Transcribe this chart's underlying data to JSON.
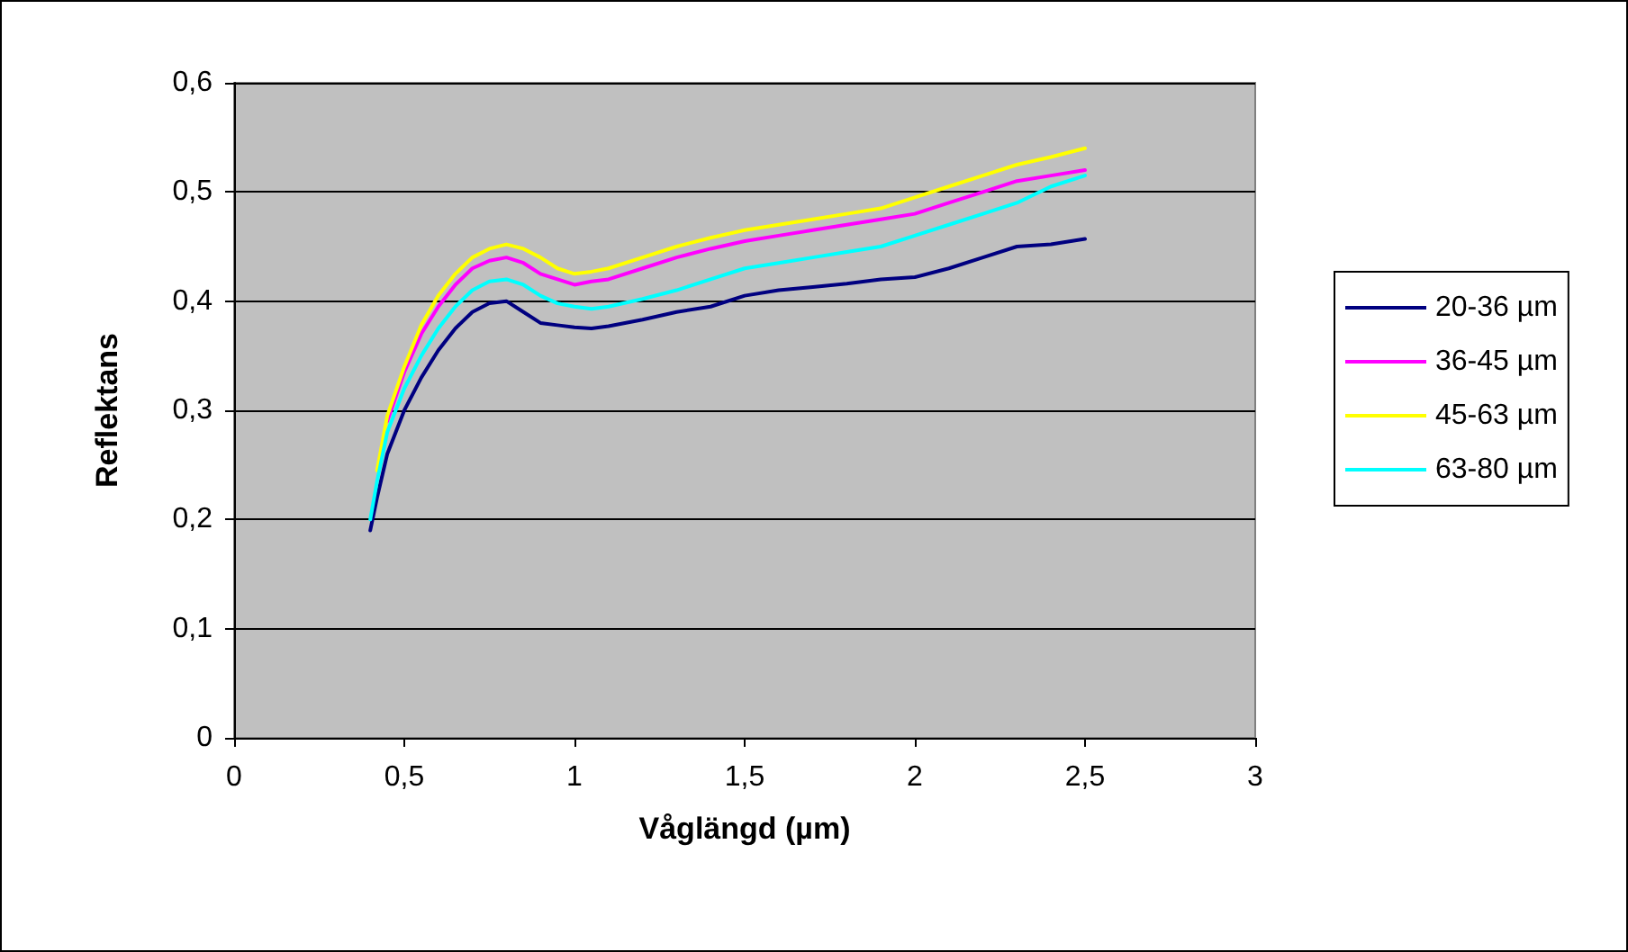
{
  "chart_data": {
    "type": "line",
    "xlabel": "Våglängd (µm)",
    "ylabel": "Reflektans",
    "x": [
      0.4,
      0.42,
      0.45,
      0.5,
      0.55,
      0.6,
      0.65,
      0.7,
      0.75,
      0.8,
      0.85,
      0.9,
      0.95,
      1.0,
      1.05,
      1.1,
      1.2,
      1.3,
      1.4,
      1.5,
      1.6,
      1.7,
      1.8,
      1.9,
      2.0,
      2.1,
      2.2,
      2.3,
      2.4,
      2.5
    ],
    "series": [
      {
        "name": "20-36 µm",
        "color": "#000080",
        "values": [
          0.19,
          0.22,
          0.26,
          0.3,
          0.33,
          0.355,
          0.375,
          0.39,
          0.398,
          0.4,
          0.39,
          0.38,
          0.378,
          0.376,
          0.375,
          0.377,
          0.383,
          0.39,
          0.395,
          0.405,
          0.41,
          0.413,
          0.416,
          0.42,
          0.422,
          0.43,
          0.44,
          0.45,
          0.452,
          0.457
        ]
      },
      {
        "name": "36-45 µm",
        "color": "#ff00ff",
        "values": [
          null,
          null,
          0.29,
          0.335,
          0.37,
          0.395,
          0.415,
          0.43,
          0.437,
          0.44,
          0.435,
          0.425,
          0.42,
          0.415,
          0.418,
          0.42,
          0.43,
          0.44,
          0.448,
          0.455,
          0.46,
          0.465,
          0.47,
          0.475,
          0.48,
          0.49,
          0.5,
          0.51,
          0.515,
          0.52
        ]
      },
      {
        "name": "45-63 µm",
        "color": "#ffff00",
        "values": [
          null,
          0.245,
          0.295,
          0.34,
          0.378,
          0.405,
          0.425,
          0.44,
          0.448,
          0.452,
          0.448,
          0.44,
          0.43,
          0.425,
          0.427,
          0.43,
          0.44,
          0.45,
          0.458,
          0.465,
          0.47,
          0.475,
          0.48,
          0.485,
          0.495,
          0.505,
          0.515,
          0.525,
          0.532,
          0.54
        ]
      },
      {
        "name": "63-80 µm",
        "color": "#00ffff",
        "values": [
          0.2,
          0.235,
          0.28,
          0.32,
          0.35,
          0.375,
          0.395,
          0.41,
          0.418,
          0.42,
          0.415,
          0.405,
          0.398,
          0.395,
          0.393,
          0.395,
          0.402,
          0.41,
          0.42,
          0.43,
          0.435,
          0.44,
          0.445,
          0.45,
          0.46,
          0.47,
          0.48,
          0.49,
          0.505,
          0.515
        ]
      }
    ],
    "xlim": [
      0,
      3
    ],
    "xticks": [
      0,
      {
        "value": 0.5,
        "label": "0,5"
      },
      1,
      {
        "value": 1.5,
        "label": "1,5"
      },
      2,
      {
        "value": 2.5,
        "label": "2,5"
      },
      3
    ],
    "ylim": [
      0,
      0.6
    ],
    "yticks": [
      0,
      {
        "value": 0.1,
        "label": "0,1"
      },
      {
        "value": 0.2,
        "label": "0,2"
      },
      {
        "value": 0.3,
        "label": "0,3"
      },
      {
        "value": 0.4,
        "label": "0,4"
      },
      {
        "value": 0.5,
        "label": "0,5"
      },
      {
        "value": 0.6,
        "label": "0,6"
      }
    ],
    "grid": "y",
    "legend": "right",
    "marker": "none",
    "line_style": "solid"
  }
}
